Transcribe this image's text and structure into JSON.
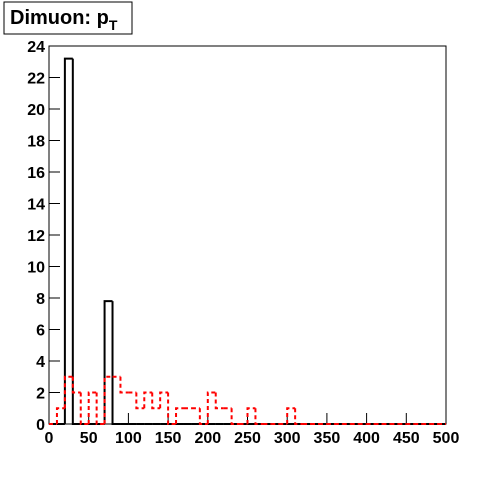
{
  "chart_data": {
    "type": "histogram",
    "title": "Dimuon: p",
    "title_subscript": "T",
    "bins": [
      0,
      10,
      20,
      30,
      40,
      50,
      60,
      70,
      80,
      90,
      100,
      110,
      120,
      130,
      140,
      150,
      160,
      170,
      180,
      190,
      200,
      210,
      220,
      230,
      240,
      250,
      260,
      270,
      280,
      290,
      300,
      310,
      320,
      330,
      340,
      350,
      360,
      370,
      380,
      390,
      400,
      410,
      420,
      430,
      440,
      450,
      460,
      470,
      480,
      490,
      500
    ],
    "series": [
      {
        "color": "#000000",
        "dash": false,
        "values": [
          0,
          0,
          23.2,
          0,
          0,
          0,
          0,
          7.8,
          0,
          0,
          0,
          0,
          0,
          0,
          0,
          0,
          0,
          0,
          0,
          0,
          0,
          0,
          0,
          0,
          0,
          0,
          0,
          0,
          0,
          0,
          0,
          0,
          0,
          0,
          0,
          0,
          0,
          0,
          0,
          0,
          0,
          0,
          0,
          0,
          0,
          0,
          0,
          0,
          0,
          0
        ]
      },
      {
        "color": "#ff0000",
        "dash": true,
        "values": [
          0,
          1,
          3,
          2,
          0,
          2,
          0,
          3,
          3,
          2,
          2,
          1,
          2,
          1,
          2,
          0,
          1,
          1,
          1,
          0,
          2,
          1,
          1,
          0,
          0,
          1,
          0,
          0,
          0,
          0,
          1,
          0,
          0,
          0,
          0,
          0,
          0,
          0,
          0,
          0,
          0,
          0,
          0,
          0,
          0,
          0,
          0,
          0,
          0,
          0
        ]
      }
    ],
    "xlim": [
      0,
      500
    ],
    "ylim": [
      0,
      24
    ],
    "xticks": [
      0,
      50,
      100,
      150,
      200,
      250,
      300,
      350,
      400,
      450,
      500
    ],
    "yticks": [
      0,
      2,
      4,
      6,
      8,
      10,
      12,
      14,
      16,
      18,
      20,
      22,
      24
    ]
  }
}
